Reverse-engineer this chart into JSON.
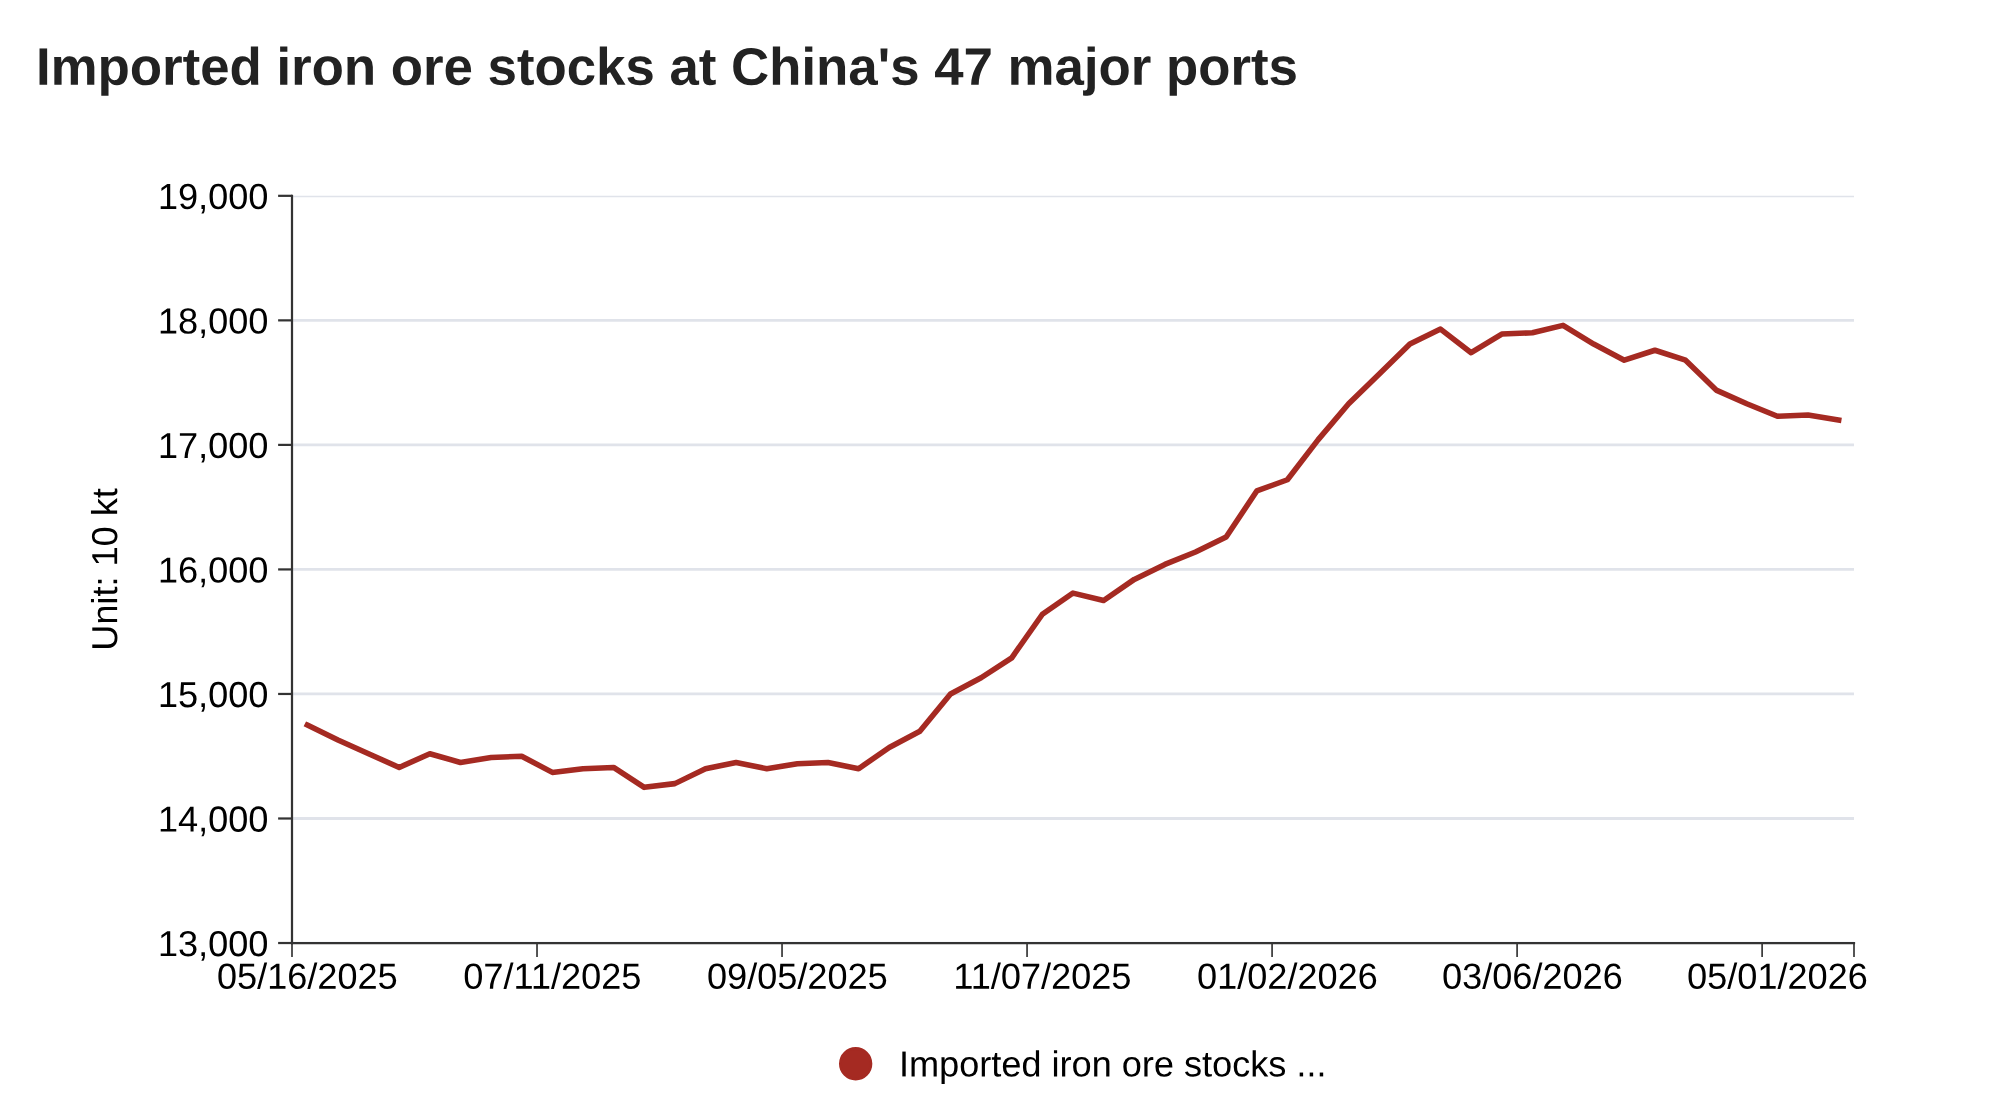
{
  "chart_data": {
    "type": "line",
    "title": "Imported iron ore stocks at China's 47 major ports",
    "ylabel": "Unit: 10 kt",
    "categories": [
      "05/16/2025",
      null,
      null,
      null,
      null,
      null,
      null,
      null,
      "07/11/2025",
      null,
      null,
      null,
      null,
      null,
      null,
      null,
      "09/05/2025",
      null,
      null,
      null,
      null,
      null,
      null,
      null,
      "11/07/2025",
      null,
      null,
      null,
      null,
      null,
      null,
      null,
      "01/02/2026",
      null,
      null,
      null,
      null,
      null,
      null,
      null,
      "03/06/2026",
      null,
      null,
      null,
      null,
      null,
      null,
      null,
      "05/01/2026",
      null,
      null
    ],
    "series": [
      {
        "name": "Imported iron ore stocks ...",
        "color": "#a52a22",
        "values": [
          14750,
          14630,
          14520,
          14410,
          14520,
          14450,
          14490,
          14500,
          14370,
          14400,
          14410,
          14250,
          14280,
          14400,
          14450,
          14400,
          14440,
          14450,
          14400,
          14570,
          14700,
          15000,
          15130,
          15290,
          15640,
          15810,
          15750,
          15920,
          16040,
          16140,
          16260,
          16630,
          16720,
          17040,
          17330,
          17570,
          17810,
          17930,
          17740,
          17890,
          17900,
          17960,
          17810,
          17680,
          17760,
          17680,
          17440,
          17330,
          17230,
          17240,
          17200
        ]
      }
    ],
    "ylim": [
      13000,
      19000
    ],
    "yticks": [
      {
        "value": 13000,
        "label": "13,000"
      },
      {
        "value": 14000,
        "label": "14,000"
      },
      {
        "value": 15000,
        "label": "15,000"
      },
      {
        "value": 16000,
        "label": "16,000"
      },
      {
        "value": 17000,
        "label": "17,000"
      },
      {
        "value": 18000,
        "label": "18,000"
      },
      {
        "value": 19000,
        "label": "19,000"
      }
    ],
    "grid": "y",
    "legend": "bottom",
    "marker": "none",
    "line_style": "solid"
  }
}
